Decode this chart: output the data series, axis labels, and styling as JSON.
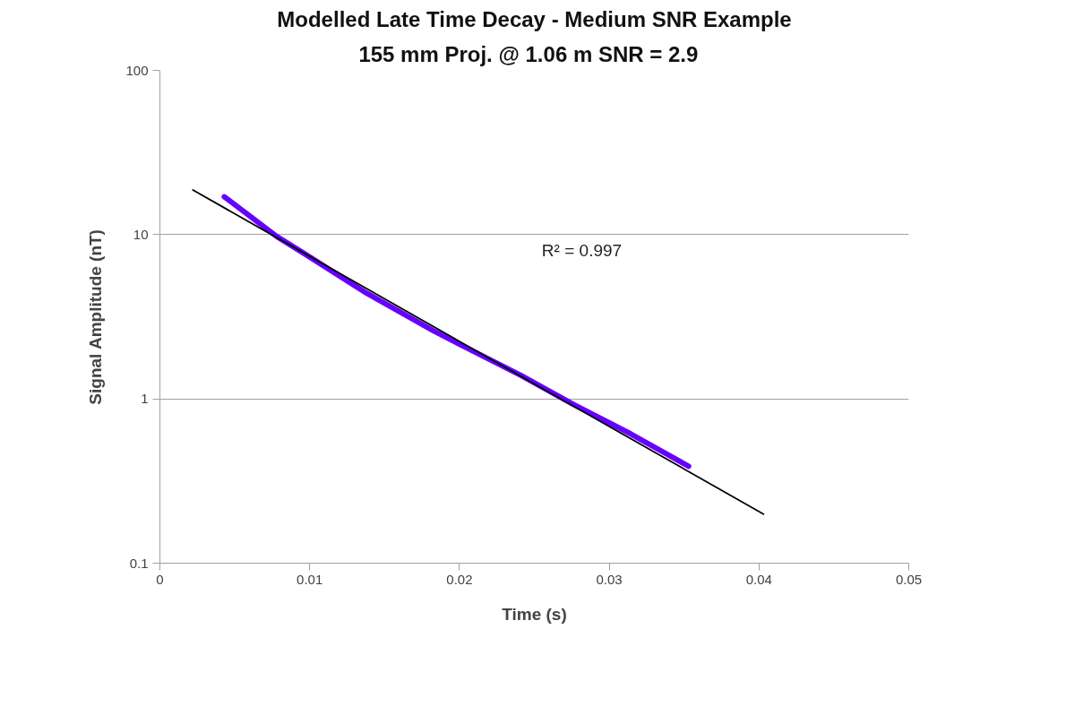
{
  "chart_data": {
    "type": "line",
    "title": "Modelled Late Time Decay - Medium SNR Example",
    "subtitle": "155 mm Proj.  @ 1.06 m  SNR = 2.9",
    "xlabel": "Time (s)",
    "ylabel": "Signal Amplitude (nT)",
    "log": "y",
    "grid": "y",
    "marker": "none",
    "xlim": [
      0,
      0.05
    ],
    "xticks": [
      0,
      0.01,
      0.02,
      0.03,
      0.04,
      0.05
    ],
    "ylim": [
      0.1,
      100
    ],
    "yticks": [
      0.1,
      1,
      10,
      100
    ],
    "series": [
      {
        "color": "#6600ff",
        "x": [
          0.0043,
          0.0078,
          0.0097,
          0.0138,
          0.01826,
          0.02097,
          0.0241,
          0.02756,
          0.03144,
          0.0353
        ],
        "values": [
          17.0,
          9.75,
          7.61,
          4.4,
          2.6,
          1.94,
          1.39,
          0.93,
          0.612,
          0.389
        ]
      },
      {
        "color": "#000000",
        "x": [
          0.0022,
          0.0403
        ],
        "values": [
          18.7,
          0.199
        ]
      }
    ],
    "annotations": [
      "R² = 0.997"
    ]
  }
}
